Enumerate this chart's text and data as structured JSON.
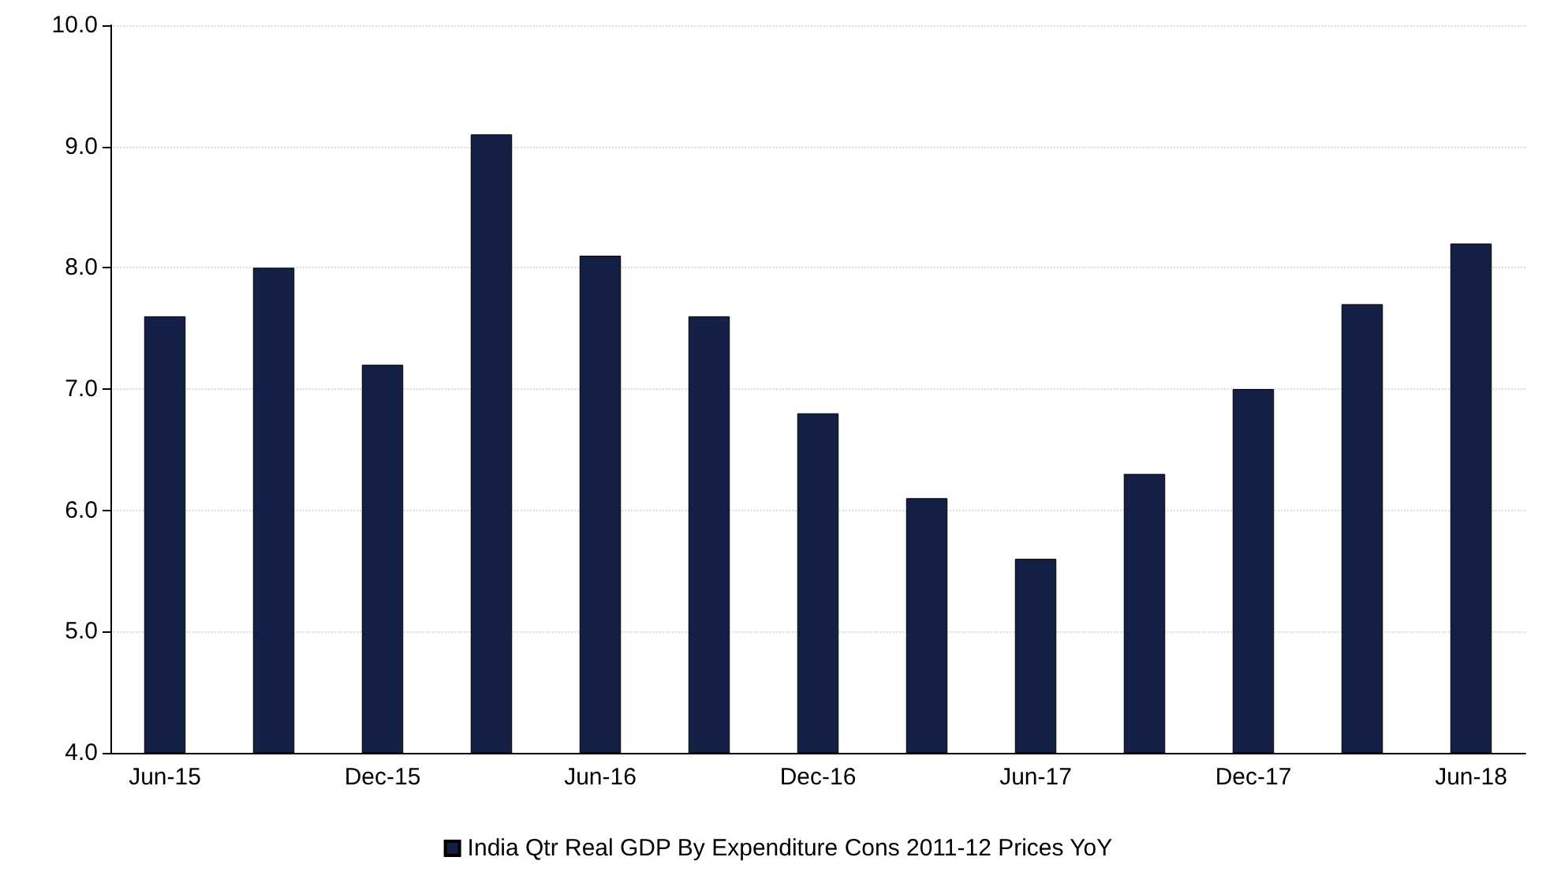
{
  "chart_data": {
    "type": "bar",
    "categories": [
      "Jun-15",
      null,
      "Dec-15",
      null,
      "Jun-16",
      null,
      "Dec-16",
      null,
      "Jun-17",
      null,
      "Dec-17",
      null,
      "Jun-18"
    ],
    "series": [
      {
        "name": "India Qtr Real GDP By Expenditure Cons 2011-12 Prices YoY",
        "color": "#131f45",
        "values": [
          7.6,
          8.0,
          7.2,
          9.1,
          8.1,
          7.6,
          6.8,
          6.1,
          5.6,
          6.3,
          7.0,
          7.7,
          8.2
        ]
      }
    ],
    "ylim": [
      4,
      10
    ],
    "yticks": [
      {
        "value": 4,
        "label": "4.0"
      },
      {
        "value": 5,
        "label": "5.0"
      },
      {
        "value": 6,
        "label": "6.0"
      },
      {
        "value": 7,
        "label": "7.0"
      },
      {
        "value": 8,
        "label": "8.0"
      },
      {
        "value": 9,
        "label": "9.0"
      },
      {
        "value": 10,
        "label": "10.0"
      }
    ],
    "grid": "y",
    "legend": "bottom"
  }
}
